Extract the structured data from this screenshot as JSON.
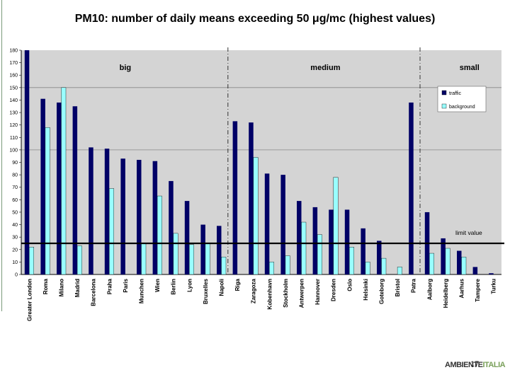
{
  "title": "PM10: number of daily means exceeding 50 μg/mc (highest values)",
  "logo": {
    "main": "AMBIENTE",
    "accent": "ITALIA"
  },
  "page_number": "17",
  "colors": {
    "traffic": "#000066",
    "background": "#99ffff",
    "plot_bg": "#d4d4d4",
    "limit_line": "#000000"
  },
  "chart_data": {
    "type": "bar",
    "ylim": [
      0,
      180
    ],
    "yticks": [
      0,
      10,
      20,
      30,
      40,
      50,
      60,
      70,
      80,
      90,
      100,
      110,
      120,
      130,
      140,
      150,
      160,
      170,
      180
    ],
    "grid": true,
    "legend_placement": "top-right",
    "groups": [
      {
        "label": "big",
        "start": 0,
        "end": 12
      },
      {
        "label": "medium",
        "start": 13,
        "end": 24
      },
      {
        "label": "small",
        "start": 25,
        "end": 30
      }
    ],
    "limit": {
      "value": 25,
      "label": "limit value"
    },
    "categories": [
      "Greater London",
      "Roma",
      "Milano",
      "Madrid",
      "Barcelona",
      "Praha",
      "Paris",
      "Munchen",
      "Wien",
      "Berlin",
      "Lyon",
      "Bruxelles",
      "Napoli",
      "Riga",
      "Zaragoza",
      "Kobenhavn",
      "Stockholm",
      "Antwerpen",
      "Hannover",
      "Dresden",
      "Oslo",
      "Helsinki",
      "Goteborg",
      "Bristol",
      "Patra",
      "Aalborg",
      "Heidelberg",
      "Aarhus",
      "Tampere",
      "Turku"
    ],
    "series": [
      {
        "name": "traffic",
        "values": [
          180,
          141,
          138,
          135,
          102,
          101,
          93,
          92,
          91,
          75,
          59,
          40,
          39,
          123,
          122,
          81,
          80,
          59,
          54,
          52,
          52,
          37,
          27,
          0,
          138,
          50,
          29,
          19,
          6,
          1
        ]
      },
      {
        "name": "background",
        "values": [
          22,
          118,
          150,
          23,
          0,
          69,
          0,
          25,
          63,
          33,
          24,
          25,
          14,
          0,
          94,
          10,
          15,
          42,
          32,
          78,
          22,
          10,
          13,
          6,
          0,
          17,
          21,
          14,
          0,
          0
        ]
      }
    ]
  }
}
